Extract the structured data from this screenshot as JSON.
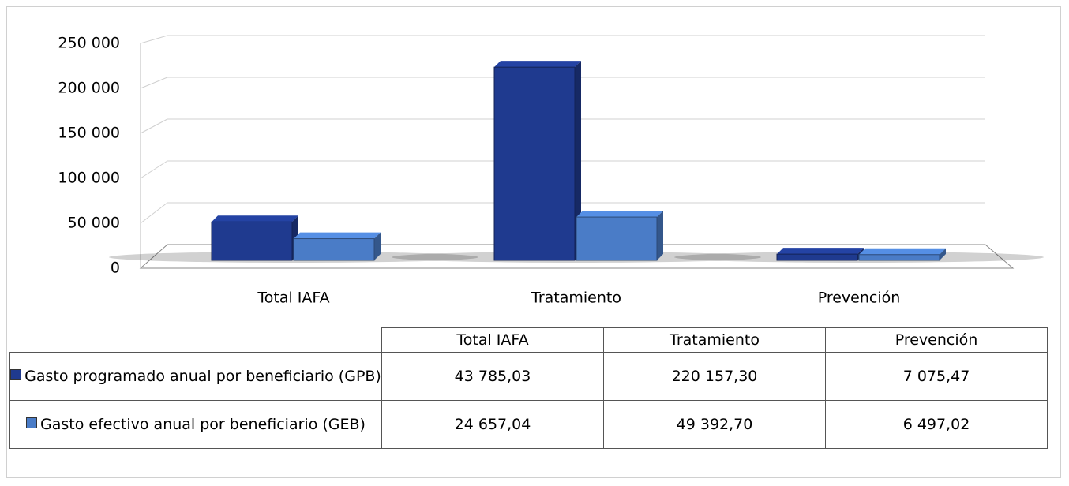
{
  "chart_data": {
    "type": "bar3d",
    "categories": [
      "Total IAFA",
      "Tratamiento",
      "Prevención"
    ],
    "series": [
      {
        "name": "Gasto programado anual por beneficiario (GPB)",
        "color": "#1f3a8f",
        "values": [
          43785.03,
          220157.3,
          7075.47
        ],
        "value_labels": [
          "43 785,03",
          "220 157,30",
          "7 075,47"
        ]
      },
      {
        "name": "Gasto efectivo anual por beneficiario (GEB)",
        "color": "#4a7cc7",
        "values": [
          24657.04,
          49392.7,
          6497.02
        ],
        "value_labels": [
          "24 657,04",
          "49 392,70",
          "6 497,02"
        ]
      }
    ],
    "ylim": [
      0,
      250000
    ],
    "yticks": [
      0,
      {
        "value": 50000,
        "label": "50 000"
      },
      {
        "value": 100000,
        "label": "100 000"
      },
      {
        "value": 150000,
        "label": "150 000"
      },
      {
        "value": 200000,
        "label": "200 000"
      },
      {
        "value": 250000,
        "label": "250 000"
      }
    ],
    "grid": true
  }
}
